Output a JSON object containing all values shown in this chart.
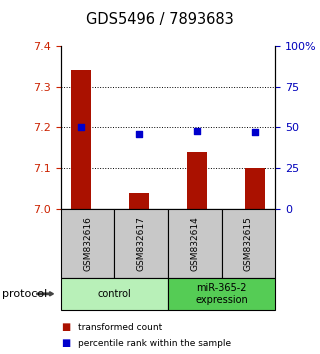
{
  "title": "GDS5496 / 7893683",
  "samples": [
    "GSM832616",
    "GSM832617",
    "GSM832614",
    "GSM832615"
  ],
  "bar_values": [
    7.34,
    7.04,
    7.14,
    7.1
  ],
  "scatter_values": [
    50,
    46,
    48,
    47
  ],
  "ylim_left": [
    7.0,
    7.4
  ],
  "ylim_right": [
    0,
    100
  ],
  "yticks_left": [
    7.0,
    7.1,
    7.2,
    7.3,
    7.4
  ],
  "yticks_right": [
    0,
    25,
    50,
    75,
    100
  ],
  "ytick_labels_right": [
    "0",
    "25",
    "50",
    "75",
    "100%"
  ],
  "gridlines": [
    7.1,
    7.2,
    7.3
  ],
  "groups": [
    {
      "label": "control",
      "samples": [
        0,
        1
      ],
      "color": "#b8f0b8"
    },
    {
      "label": "miR-365-2\nexpression",
      "samples": [
        2,
        3
      ],
      "color": "#55cc55"
    }
  ],
  "bar_color": "#aa1100",
  "scatter_color": "#0000cc",
  "bar_baseline": 7.0,
  "bg_color": "#ffffff",
  "left_tick_color": "#cc2200",
  "right_tick_color": "#0000bb",
  "legend_bar_label": "transformed count",
  "legend_scatter_label": "percentile rank within the sample",
  "protocol_label": "protocol",
  "sample_box_color": "#c8c8c8",
  "sample_box_border": "#000000"
}
